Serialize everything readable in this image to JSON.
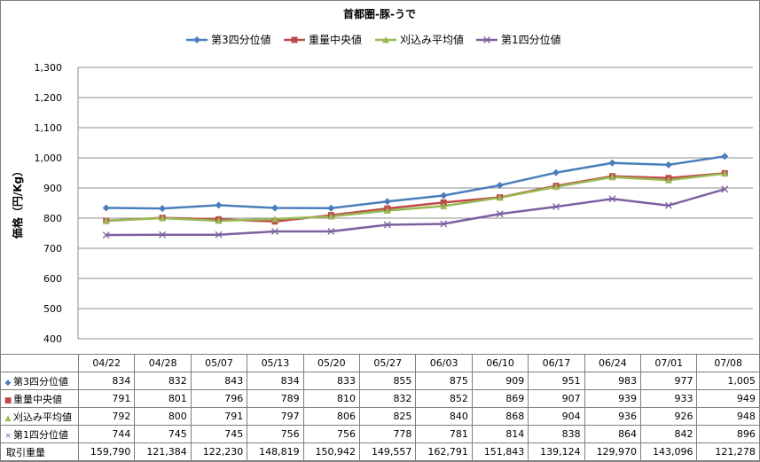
{
  "chart_data": {
    "type": "line",
    "title": "首都圏-豚-うで",
    "ylabel": "価格（円/Kg）",
    "ylim": [
      400,
      1300
    ],
    "yticks": [
      400,
      500,
      600,
      700,
      800,
      900,
      1000,
      1100,
      1200,
      1300
    ],
    "ytick_labels": [
      "400",
      "500",
      "600",
      "700",
      "800",
      "900",
      "1,000",
      "1,100",
      "1,200",
      "1,300"
    ],
    "grid": true,
    "legend_position": "top-center",
    "categories": [
      "04/22",
      "04/28",
      "05/07",
      "05/13",
      "05/20",
      "05/27",
      "06/03",
      "06/10",
      "06/17",
      "06/24",
      "07/01",
      "07/08"
    ],
    "series": [
      {
        "name": "第3四分位値",
        "color": "#4a7ebb",
        "marker": "diamond",
        "values": [
          834,
          832,
          843,
          834,
          833,
          855,
          875,
          909,
          951,
          983,
          977,
          1005
        ],
        "labels": [
          "834",
          "832",
          "843",
          "834",
          "833",
          "855",
          "875",
          "909",
          "951",
          "983",
          "977",
          "1,005"
        ]
      },
      {
        "name": "重量中央値",
        "color": "#be4b48",
        "marker": "square",
        "values": [
          791,
          801,
          796,
          789,
          810,
          832,
          852,
          869,
          907,
          939,
          933,
          949
        ],
        "labels": [
          "791",
          "801",
          "796",
          "789",
          "810",
          "832",
          "852",
          "869",
          "907",
          "939",
          "933",
          "949"
        ]
      },
      {
        "name": "刈込み平均値",
        "color": "#98b954",
        "marker": "triangle",
        "values": [
          792,
          800,
          791,
          797,
          806,
          825,
          840,
          868,
          904,
          936,
          926,
          948
        ],
        "labels": [
          "792",
          "800",
          "791",
          "797",
          "806",
          "825",
          "840",
          "868",
          "904",
          "936",
          "926",
          "948"
        ]
      },
      {
        "name": "第1四分位値",
        "color": "#7d60a0",
        "marker": "x",
        "values": [
          744,
          745,
          745,
          756,
          756,
          778,
          781,
          814,
          838,
          864,
          842,
          896
        ],
        "labels": [
          "744",
          "745",
          "745",
          "756",
          "756",
          "778",
          "781",
          "814",
          "838",
          "864",
          "842",
          "896"
        ]
      }
    ],
    "extra_row": {
      "name": "取引重量",
      "values": [
        159790,
        121384,
        122230,
        148819,
        150942,
        149557,
        162791,
        151843,
        139124,
        129970,
        143096,
        121278
      ],
      "labels": [
        "159,790",
        "121,384",
        "122,230",
        "148,819",
        "150,942",
        "149,557",
        "162,791",
        "151,843",
        "139,124",
        "129,970",
        "143,096",
        "121,278"
      ]
    }
  }
}
